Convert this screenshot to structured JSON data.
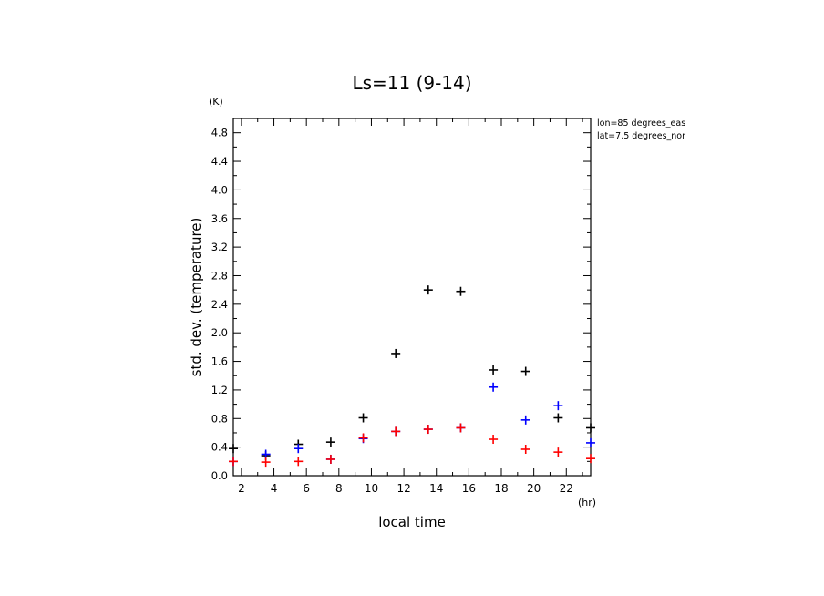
{
  "chart_data": {
    "type": "scatter",
    "title": "Ls=11 (9-14)",
    "xlabel": "local time",
    "ylabel": "std. dev. (temperature)",
    "x_unit": "(hr)",
    "y_unit": "(K)",
    "xlim": [
      1.5,
      23.5
    ],
    "ylim": [
      0.0,
      5.0
    ],
    "xticks": [
      2,
      4,
      6,
      8,
      10,
      12,
      14,
      16,
      18,
      20,
      22
    ],
    "yticks": [
      0.0,
      0.4,
      0.8,
      1.2,
      1.6,
      2.0,
      2.4,
      2.8,
      3.2,
      3.6,
      4.0,
      4.4,
      4.8
    ],
    "ytick_labels": [
      "0.0",
      "0.4",
      "0.8",
      "1.2",
      "1.6",
      "2.0",
      "2.4",
      "2.8",
      "3.2",
      "3.6",
      "4.0",
      "4.4",
      "4.8"
    ],
    "annotations": [
      "lon=85 degrees_eas",
      "lat=7.5 degrees_nor"
    ],
    "grid": false,
    "series": [
      {
        "color": "#000000",
        "x": [
          1.5,
          3.5,
          5.5,
          7.5,
          9.5,
          11.5,
          13.5,
          15.5,
          17.5,
          19.5,
          21.5,
          23.5
        ],
        "y": [
          0.38,
          0.28,
          0.44,
          0.47,
          0.81,
          1.71,
          2.6,
          2.58,
          1.48,
          1.46,
          0.81,
          0.67
        ]
      },
      {
        "color": "#0000ff",
        "x": [
          1.5,
          3.5,
          5.5,
          7.5,
          9.5,
          11.5,
          13.5,
          15.5,
          17.5,
          19.5,
          21.5,
          23.5
        ],
        "y": [
          0.2,
          0.3,
          0.38,
          0.23,
          0.52,
          0.62,
          0.65,
          0.67,
          1.24,
          0.78,
          0.98,
          0.46
        ]
      },
      {
        "color": "#ff0000",
        "x": [
          1.5,
          3.5,
          5.5,
          7.5,
          9.5,
          11.5,
          13.5,
          15.5,
          17.5,
          19.5,
          21.5,
          23.5
        ],
        "y": [
          0.2,
          0.19,
          0.2,
          0.23,
          0.53,
          0.62,
          0.65,
          0.67,
          0.51,
          0.37,
          0.33,
          0.24
        ]
      }
    ]
  }
}
